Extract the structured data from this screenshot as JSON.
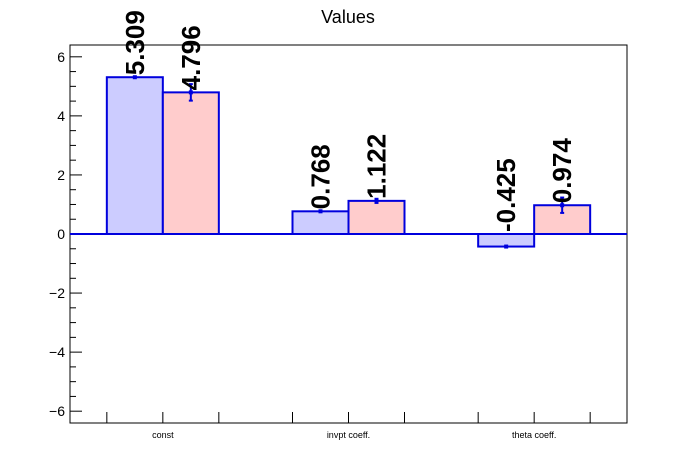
{
  "chart_data": {
    "type": "bar",
    "title": "Values",
    "xlabel": "",
    "ylabel": "",
    "categories": [
      "const",
      "invpt coeff.",
      "theta coeff."
    ],
    "series": [
      {
        "values": [
          5.309,
          0.768,
          -0.425
        ],
        "errors": [
          0,
          0,
          0
        ],
        "fill": "#ccccff",
        "edge": "#0000dd"
      },
      {
        "values": [
          4.796,
          1.122,
          0.974
        ],
        "errors": [
          0.28,
          0.07,
          0.26
        ],
        "fill": "#ffcccc",
        "edge": "#0000dd"
      }
    ],
    "data_labels": [
      [
        "5.309",
        "0.768",
        "-0.425"
      ],
      [
        "4.796",
        "1.122",
        "0.974"
      ]
    ],
    "ylim": [
      -6.4,
      6.4
    ],
    "yticks": [
      -6,
      -4,
      -2,
      0,
      2,
      4,
      6
    ],
    "ytick_labels": [
      "−6",
      "−4",
      "−2",
      "0",
      "2",
      "4",
      "6"
    ],
    "grid": false,
    "legend": "none",
    "zero_line_color": "#0000dd"
  }
}
